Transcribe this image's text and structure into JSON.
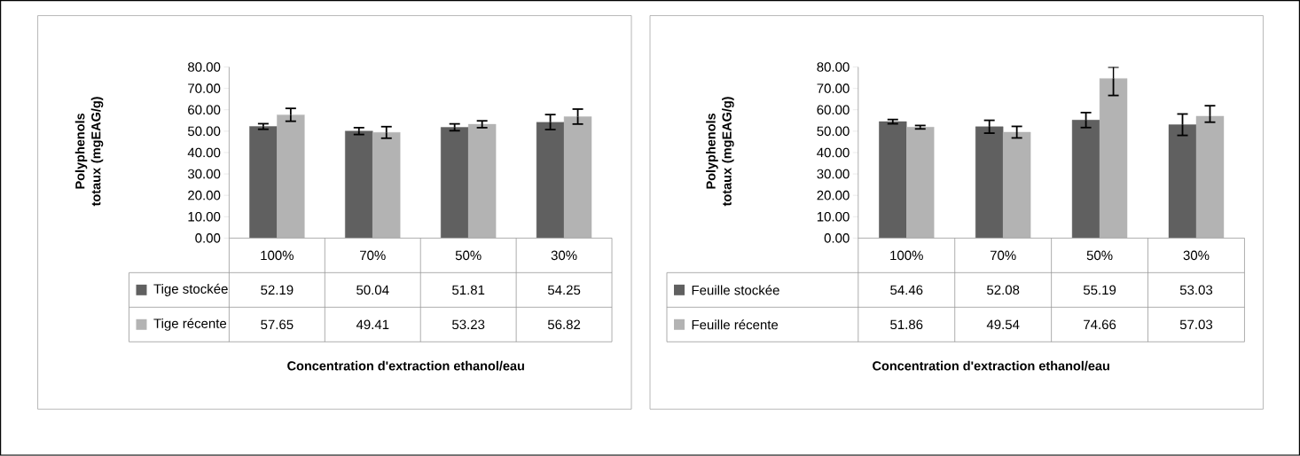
{
  "chart_data": [
    {
      "type": "bar",
      "ylabel": "Polyphenols totaux (mgEAG/g)",
      "xlabel": "Concentration d'extraction ethanol/eau",
      "categories": [
        "100%",
        "70%",
        "50%",
        "30%"
      ],
      "series": [
        {
          "name": "Tige stockée",
          "color": "#606060",
          "values": [
            52.19,
            50.04,
            51.81,
            54.25
          ],
          "errors": [
            1.3,
            1.6,
            1.6,
            3.5
          ]
        },
        {
          "name": "Tige récente",
          "color": "#b3b3b3",
          "values": [
            57.65,
            49.41,
            53.23,
            56.82
          ],
          "errors": [
            3.0,
            2.7,
            1.6,
            3.5
          ]
        }
      ],
      "ylim": [
        0,
        80
      ],
      "yticks": [
        {
          "value": 0,
          "label": "0.00"
        },
        {
          "value": 10,
          "label": "10.00"
        },
        {
          "value": 20,
          "label": "20.00"
        },
        {
          "value": 30,
          "label": "30.00"
        },
        {
          "value": 40,
          "label": "40.00"
        },
        {
          "value": 50,
          "label": "50.00"
        },
        {
          "value": 60,
          "label": "60.00"
        },
        {
          "value": 70,
          "label": "70.00"
        },
        {
          "value": 80,
          "label": "80.00"
        }
      ],
      "data_labels": true,
      "legend": "bottom left",
      "grid": false
    },
    {
      "type": "bar",
      "ylabel": "Polyphenols totaux (mgEAG/g)",
      "xlabel": "Concentration d'extraction ethanol/eau",
      "categories": [
        "100%",
        "70%",
        "50%",
        "30%"
      ],
      "series": [
        {
          "name": "Feuille stockée",
          "color": "#606060",
          "values": [
            54.46,
            52.08,
            55.19,
            53.03
          ],
          "errors": [
            1.0,
            3.0,
            3.5,
            5.0
          ]
        },
        {
          "name": "Feuille récente",
          "color": "#b3b3b3",
          "values": [
            51.86,
            49.54,
            74.66,
            57.03
          ],
          "errors": [
            0.8,
            2.7,
            [
              66.7,
              80
            ],
            [
              54.2,
              61.9
            ]
          ]
        }
      ],
      "ylim": [
        0,
        80
      ],
      "yticks": [
        {
          "value": 0,
          "label": "0.00"
        },
        {
          "value": 10,
          "label": "10.00"
        },
        {
          "value": 20,
          "label": "20.00"
        },
        {
          "value": 30,
          "label": "30.00"
        },
        {
          "value": 40,
          "label": "40.00"
        },
        {
          "value": 50,
          "label": "50.00"
        },
        {
          "value": 60,
          "label": "60.00"
        },
        {
          "value": 70,
          "label": "70.00"
        },
        {
          "value": 80,
          "label": "80.00"
        }
      ],
      "data_labels": true,
      "legend": "bottom left",
      "grid": false
    }
  ]
}
